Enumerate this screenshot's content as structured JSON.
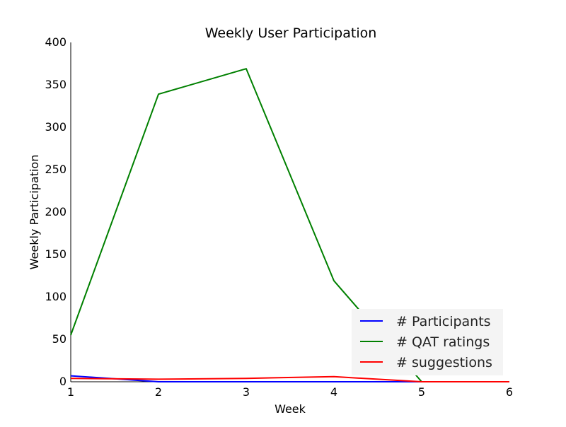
{
  "chart_data": {
    "type": "line",
    "title": "Weekly User Participation",
    "xlabel": "Week",
    "ylabel": "Weekly Participation",
    "x": [
      1,
      2,
      3,
      4,
      5,
      6
    ],
    "xlim": [
      1,
      6
    ],
    "ylim": [
      0,
      400
    ],
    "xticks": [
      1,
      2,
      3,
      4,
      5,
      6
    ],
    "yticks": [
      0,
      50,
      100,
      150,
      200,
      250,
      300,
      350,
      400
    ],
    "grid": false,
    "legend_position": "lower-right",
    "series": [
      {
        "name": "# Participants",
        "color": "#0000ff",
        "values": [
          7,
          0,
          0,
          0,
          0,
          0
        ]
      },
      {
        "name": "# QAT ratings",
        "color": "#008000",
        "values": [
          55,
          339,
          369,
          119,
          0,
          0
        ]
      },
      {
        "name": "# suggestions",
        "color": "#ff0000",
        "values": [
          4,
          3,
          4,
          6,
          0,
          0
        ]
      }
    ]
  }
}
